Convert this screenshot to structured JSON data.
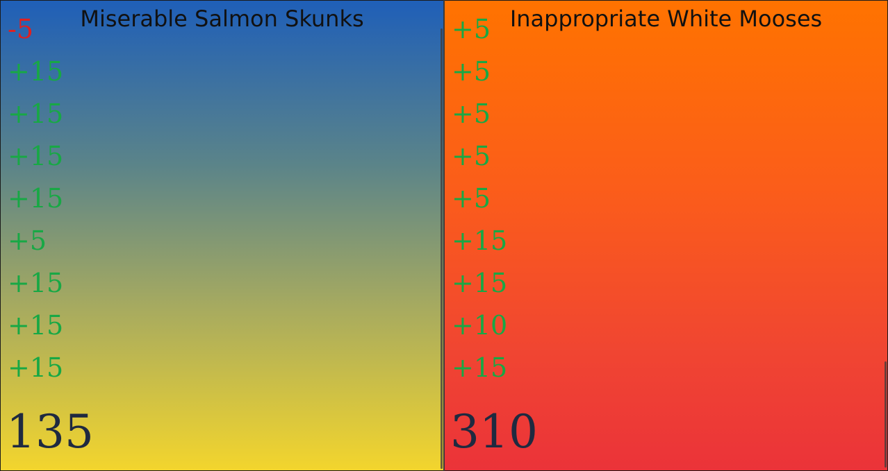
{
  "teams": [
    {
      "name": "Miserable Salmon Skunks",
      "history": [
        "-5",
        "+15",
        "+15",
        "+15",
        "+15",
        "+5",
        "+15",
        "+15",
        "+15"
      ],
      "total": "135"
    },
    {
      "name": "Inappropriate White Mooses",
      "history": [
        "+5",
        "+5",
        "+5",
        "+5",
        "+5",
        "+15",
        "+15",
        "+10",
        "+15"
      ],
      "total": "310"
    }
  ],
  "colors": {
    "positive": "#18a845",
    "negative": "#e02020",
    "total_text": "#1f2a40"
  }
}
